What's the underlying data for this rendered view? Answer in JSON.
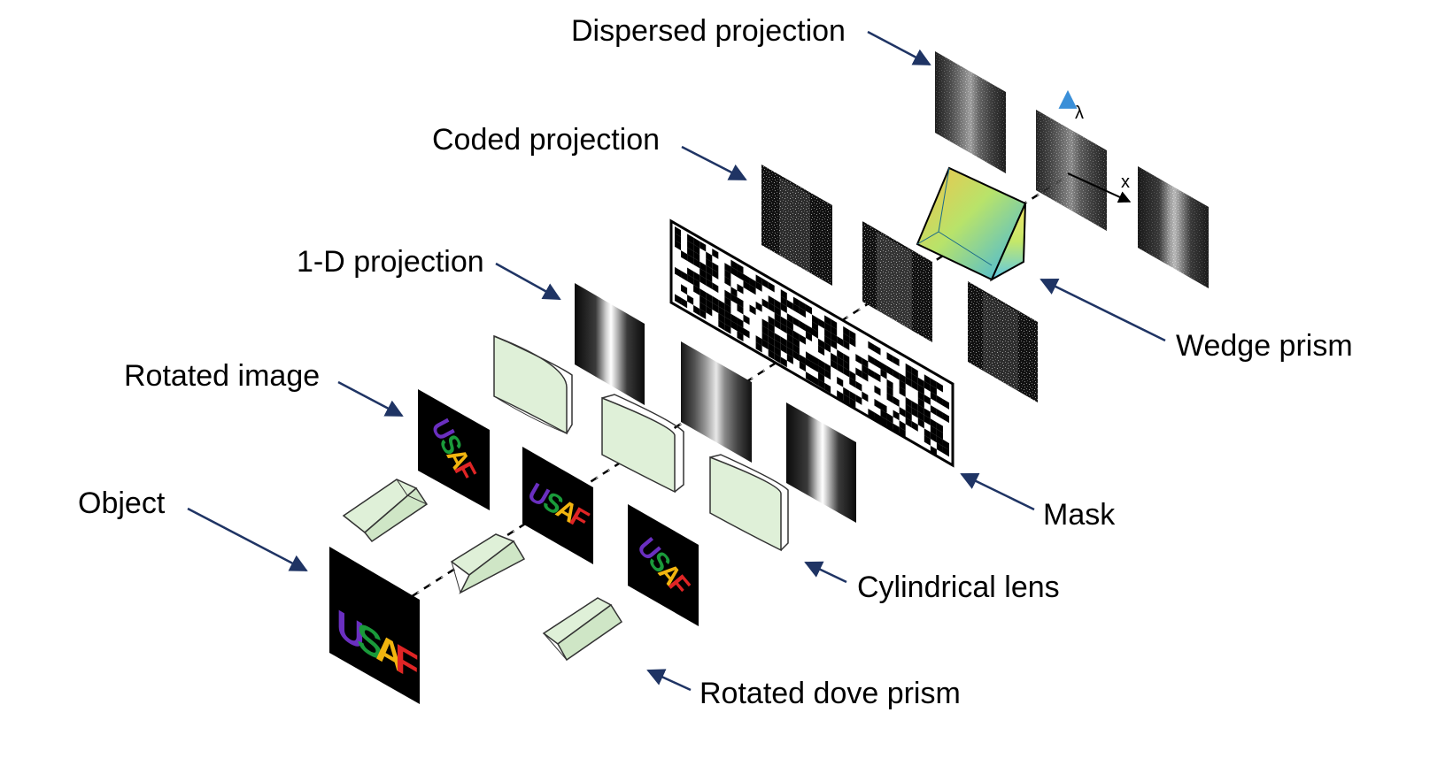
{
  "labels": {
    "dispersed_projection": "Dispersed projection",
    "coded_projection": "Coded projection",
    "one_d_projection": "1-D projection",
    "rotated_image": "Rotated image",
    "object": "Object",
    "wedge_prism": "Wedge prism",
    "mask": "Mask",
    "cylindrical_lens": "Cylindrical lens",
    "rotated_dove_prism": "Rotated dove prism"
  },
  "object_text": [
    "U",
    "S",
    "A",
    "F"
  ],
  "axes": {
    "lambda": "λ",
    "x": "x"
  },
  "colors": {
    "arrow": "#1f3464",
    "lens_fill": "#dff0d8",
    "letter_u": "#6a2fc0",
    "letter_s": "#1a9a3a",
    "letter_a": "#f2b50f",
    "letter_f": "#e02525",
    "lambda_axis": "#3a8fd8"
  }
}
